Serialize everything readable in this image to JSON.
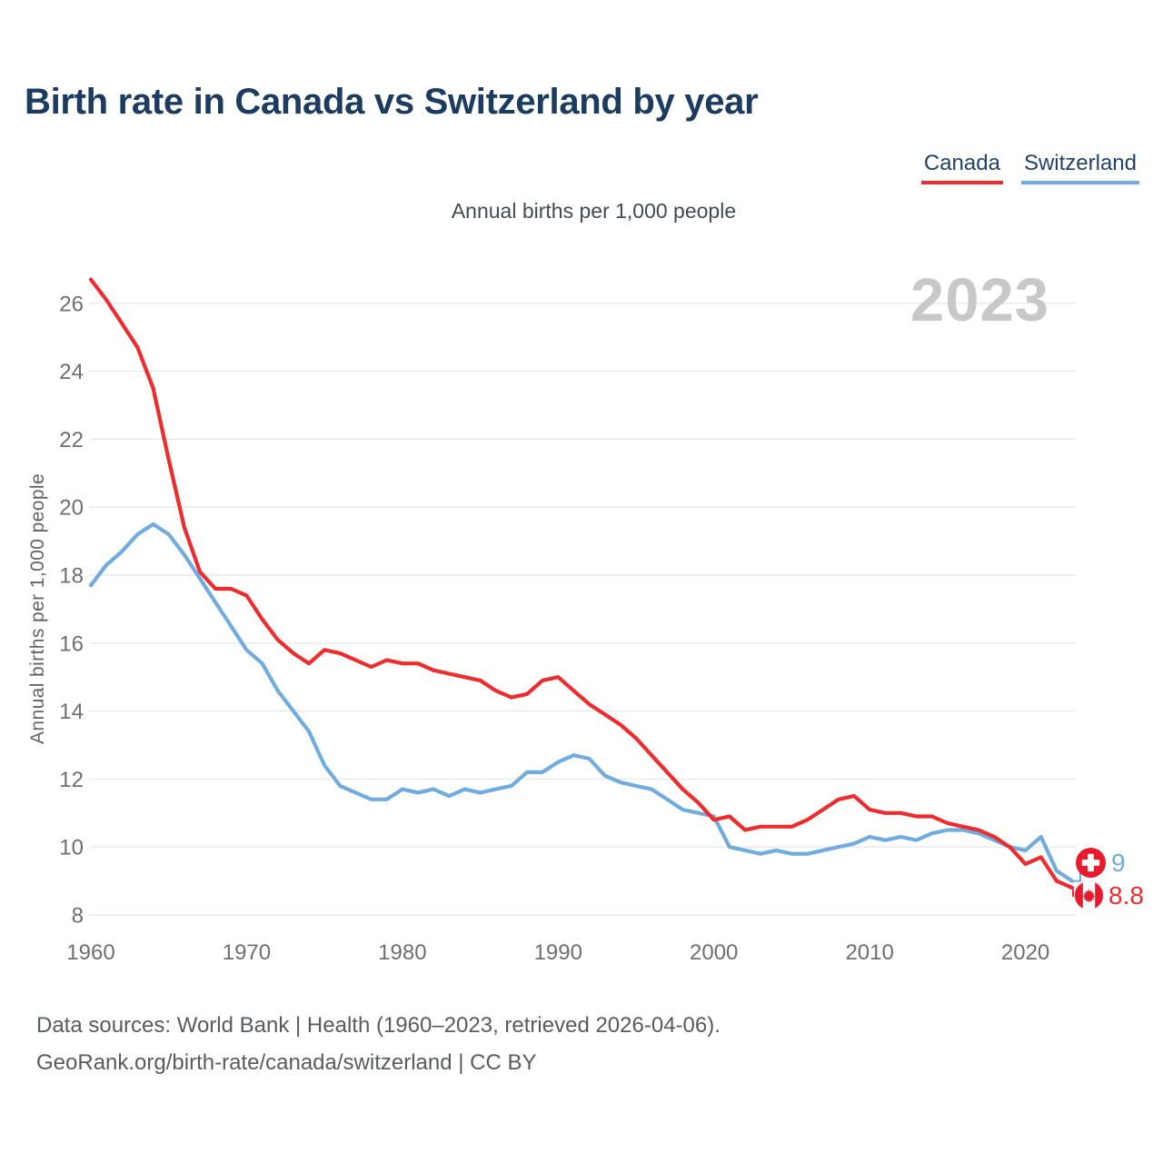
{
  "header": {
    "title": "Birth rate in Canada vs Switzerland by year",
    "subtitle": "Annual births per 1,000 people"
  },
  "legend": [
    {
      "label": "Canada",
      "color": "#ef2b2d"
    },
    {
      "label": "Switzerland",
      "color": "#70acdf"
    }
  ],
  "watermark_year": "2023",
  "chart_data": {
    "type": "line",
    "title": "Birth rate in Canada vs Switzerland by year",
    "xlabel": "",
    "ylabel": "Annual births per 1,000 people",
    "xlim": [
      1960,
      2023
    ],
    "ylim": [
      8,
      26.8
    ],
    "grid": true,
    "legend_position": "top-right",
    "x_ticks": [
      1960,
      1970,
      1980,
      1990,
      2000,
      2010,
      2020
    ],
    "y_ticks": [
      8,
      10,
      12,
      14,
      16,
      18,
      20,
      22,
      24,
      26
    ],
    "x": [
      1960,
      1961,
      1962,
      1963,
      1964,
      1965,
      1966,
      1967,
      1968,
      1969,
      1970,
      1971,
      1972,
      1973,
      1974,
      1975,
      1976,
      1977,
      1978,
      1979,
      1980,
      1981,
      1982,
      1983,
      1984,
      1985,
      1986,
      1987,
      1988,
      1989,
      1990,
      1991,
      1992,
      1993,
      1994,
      1995,
      1996,
      1997,
      1998,
      1999,
      2000,
      2001,
      2002,
      2003,
      2004,
      2005,
      2006,
      2007,
      2008,
      2009,
      2010,
      2011,
      2012,
      2013,
      2014,
      2015,
      2016,
      2017,
      2018,
      2019,
      2020,
      2021,
      2022,
      2023
    ],
    "series": [
      {
        "name": "Switzerland",
        "color": "#70acdf",
        "values": [
          17.7,
          18.3,
          18.7,
          19.2,
          19.5,
          19.2,
          18.6,
          17.9,
          17.2,
          16.5,
          15.8,
          15.4,
          14.6,
          14.0,
          13.4,
          12.4,
          11.8,
          11.6,
          11.4,
          11.4,
          11.7,
          11.6,
          11.7,
          11.5,
          11.7,
          11.6,
          11.7,
          11.8,
          12.2,
          12.2,
          12.5,
          12.7,
          12.6,
          12.1,
          11.9,
          11.8,
          11.7,
          11.4,
          11.1,
          11.0,
          10.9,
          10.0,
          9.9,
          9.8,
          9.9,
          9.8,
          9.8,
          9.9,
          10.0,
          10.1,
          10.3,
          10.2,
          10.3,
          10.2,
          10.4,
          10.5,
          10.5,
          10.4,
          10.2,
          10.0,
          9.9,
          10.3,
          9.3,
          9.0
        ]
      },
      {
        "name": "Canada",
        "color": "#ef2b2d",
        "values": [
          26.7,
          26.1,
          25.4,
          24.7,
          23.5,
          21.4,
          19.4,
          18.1,
          17.6,
          17.6,
          17.4,
          16.7,
          16.1,
          15.7,
          15.4,
          15.8,
          15.7,
          15.5,
          15.3,
          15.5,
          15.4,
          15.4,
          15.2,
          15.1,
          15.0,
          14.9,
          14.6,
          14.4,
          14.5,
          14.9,
          15.0,
          14.6,
          14.2,
          13.9,
          13.6,
          13.2,
          12.7,
          12.2,
          11.7,
          11.3,
          10.8,
          10.9,
          10.5,
          10.6,
          10.6,
          10.6,
          10.8,
          11.1,
          11.4,
          11.5,
          11.1,
          11.0,
          11.0,
          10.9,
          10.9,
          10.7,
          10.6,
          10.5,
          10.3,
          10.0,
          9.5,
          9.7,
          9.0,
          8.8
        ]
      }
    ],
    "end_labels": [
      {
        "series": "Switzerland",
        "flag": "switzerland",
        "value": "9"
      },
      {
        "series": "Canada",
        "flag": "canada",
        "value": "8.8"
      }
    ]
  },
  "footer": {
    "line1": "Data sources: World Bank | Health (1960–2023, retrieved 2026-04-06).",
    "line2": "GeoRank.org/birth-rate/canada/switzerland | CC BY"
  }
}
